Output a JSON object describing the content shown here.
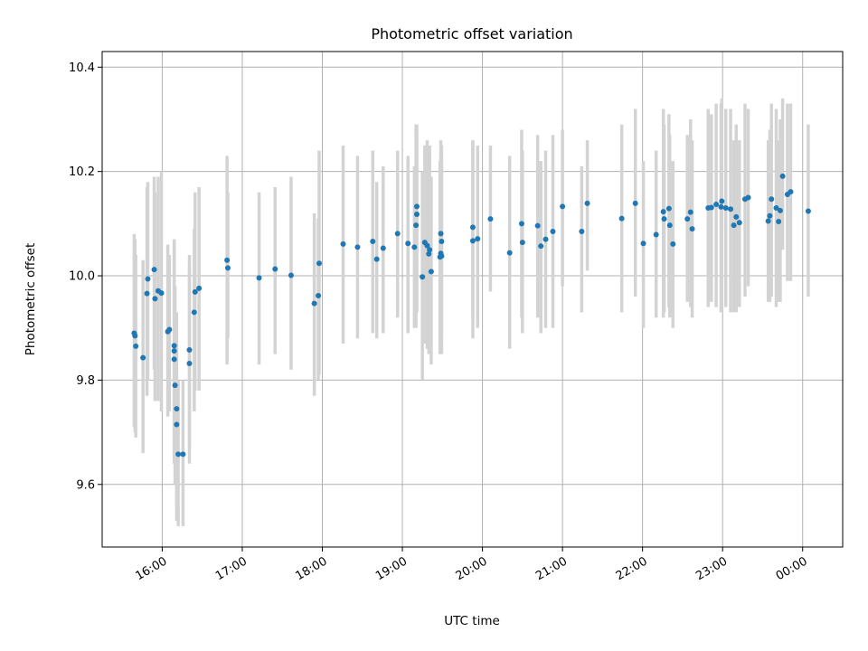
{
  "chart_data": {
    "type": "scatter",
    "title": "Photometric offset variation",
    "xlabel": "UTC time",
    "ylabel": "Photometric offset",
    "x_unit": "hours UTC",
    "xlim": [
      15.25,
      24.5
    ],
    "ylim": [
      9.48,
      10.43
    ],
    "grid": true,
    "colors": {
      "point": "#1f77b4",
      "errorbar": "#d3d3d3",
      "grid": "#b0b0b0"
    },
    "x_ticks": [
      {
        "value": 16,
        "label": "16:00"
      },
      {
        "value": 17,
        "label": "17:00"
      },
      {
        "value": 18,
        "label": "18:00"
      },
      {
        "value": 19,
        "label": "19:00"
      },
      {
        "value": 20,
        "label": "20:00"
      },
      {
        "value": 21,
        "label": "21:00"
      },
      {
        "value": 22,
        "label": "22:00"
      },
      {
        "value": 23,
        "label": "23:00"
      },
      {
        "value": 24,
        "label": "00:00"
      }
    ],
    "y_ticks": [
      {
        "value": 9.6,
        "label": "9.6"
      },
      {
        "value": 9.8,
        "label": "9.8"
      },
      {
        "value": 10.0,
        "label": "10.0"
      },
      {
        "value": 10.2,
        "label": "10.2"
      },
      {
        "value": 10.4,
        "label": "10.4"
      }
    ],
    "points": [
      [
        15.65,
        9.89,
        9.71,
        10.08
      ],
      [
        15.66,
        9.885,
        9.7,
        10.07
      ],
      [
        15.67,
        9.865,
        9.69,
        10.04
      ],
      [
        15.76,
        9.843,
        9.66,
        10.03
      ],
      [
        15.81,
        9.966,
        9.77,
        10.17
      ],
      [
        15.82,
        9.994,
        9.8,
        10.18
      ],
      [
        15.9,
        10.012,
        9.82,
        10.19
      ],
      [
        15.91,
        9.956,
        9.76,
        10.16
      ],
      [
        15.95,
        9.971,
        9.76,
        10.19
      ],
      [
        15.99,
        9.967,
        9.74,
        10.2
      ],
      [
        16.07,
        9.893,
        9.73,
        10.06
      ],
      [
        16.09,
        9.897,
        9.74,
        10.04
      ],
      [
        16.15,
        9.866,
        9.66,
        10.07
      ],
      [
        16.15,
        9.856,
        9.65,
        10.06
      ],
      [
        16.15,
        9.84,
        9.64,
        10.04
      ],
      [
        16.16,
        9.79,
        9.6,
        9.98
      ],
      [
        16.18,
        9.745,
        9.56,
        9.93
      ],
      [
        16.18,
        9.715,
        9.53,
        9.9
      ],
      [
        16.2,
        9.658,
        9.52,
        9.8
      ],
      [
        16.26,
        9.658,
        9.52,
        9.8
      ],
      [
        16.34,
        9.858,
        9.67,
        10.04
      ],
      [
        16.34,
        9.832,
        9.64,
        10.02
      ],
      [
        16.4,
        9.93,
        9.74,
        10.09
      ],
      [
        16.41,
        9.969,
        9.78,
        10.16
      ],
      [
        16.46,
        9.976,
        9.78,
        10.17
      ],
      [
        16.81,
        10.03,
        9.83,
        10.23
      ],
      [
        16.82,
        10.015,
        9.88,
        10.16
      ],
      [
        17.21,
        9.996,
        9.83,
        10.16
      ],
      [
        17.41,
        10.013,
        9.85,
        10.17
      ],
      [
        17.61,
        10.001,
        9.82,
        10.19
      ],
      [
        17.9,
        9.947,
        9.77,
        10.12
      ],
      [
        17.95,
        9.962,
        9.8,
        10.11
      ],
      [
        17.96,
        10.024,
        9.81,
        10.24
      ],
      [
        18.26,
        10.061,
        9.87,
        10.25
      ],
      [
        18.44,
        10.055,
        9.88,
        10.23
      ],
      [
        18.63,
        10.066,
        9.89,
        10.24
      ],
      [
        18.68,
        10.032,
        9.88,
        10.18
      ],
      [
        18.76,
        10.053,
        9.89,
        10.21
      ],
      [
        18.94,
        10.081,
        9.92,
        10.24
      ],
      [
        19.07,
        10.062,
        9.89,
        10.23
      ],
      [
        19.15,
        10.055,
        9.9,
        10.21
      ],
      [
        19.17,
        10.097,
        9.9,
        10.29
      ],
      [
        19.18,
        10.118,
        9.93,
        10.29
      ],
      [
        19.18,
        10.133,
        9.93,
        10.27
      ],
      [
        19.25,
        9.998,
        9.8,
        10.2
      ],
      [
        19.28,
        10.064,
        9.87,
        10.25
      ],
      [
        19.31,
        10.058,
        9.86,
        10.26
      ],
      [
        19.33,
        10.042,
        9.85,
        10.24
      ],
      [
        19.34,
        10.05,
        9.86,
        10.25
      ],
      [
        19.36,
        10.008,
        9.83,
        10.19
      ],
      [
        19.47,
        10.036,
        9.85,
        10.22
      ],
      [
        19.48,
        10.043,
        9.86,
        10.23
      ],
      [
        19.48,
        10.081,
        9.89,
        10.26
      ],
      [
        19.49,
        10.066,
        9.88,
        10.25
      ],
      [
        19.49,
        10.038,
        9.85,
        10.22
      ],
      [
        19.88,
        10.093,
        9.92,
        10.26
      ],
      [
        19.88,
        10.067,
        9.88,
        10.26
      ],
      [
        19.94,
        10.071,
        9.9,
        10.25
      ],
      [
        20.1,
        10.109,
        9.97,
        10.25
      ],
      [
        20.34,
        10.044,
        9.86,
        10.23
      ],
      [
        20.49,
        10.1,
        9.92,
        10.28
      ],
      [
        20.5,
        10.064,
        9.89,
        10.24
      ],
      [
        20.69,
        10.096,
        9.92,
        10.27
      ],
      [
        20.73,
        10.057,
        9.89,
        10.22
      ],
      [
        20.79,
        10.07,
        9.9,
        10.24
      ],
      [
        20.88,
        10.085,
        9.9,
        10.27
      ],
      [
        21.0,
        10.133,
        9.98,
        10.28
      ],
      [
        21.24,
        10.085,
        9.93,
        10.21
      ],
      [
        21.31,
        10.139,
        10.01,
        10.26
      ],
      [
        21.74,
        10.11,
        9.93,
        10.29
      ],
      [
        21.91,
        10.139,
        9.96,
        10.32
      ],
      [
        22.01,
        10.062,
        9.9,
        10.22
      ],
      [
        22.17,
        10.079,
        9.92,
        10.24
      ],
      [
        22.26,
        10.123,
        9.92,
        10.32
      ],
      [
        22.27,
        10.109,
        9.93,
        10.29
      ],
      [
        22.33,
        10.129,
        9.94,
        10.31
      ],
      [
        22.34,
        10.097,
        9.92,
        10.27
      ],
      [
        22.38,
        10.061,
        9.9,
        10.22
      ],
      [
        22.56,
        10.109,
        9.95,
        10.27
      ],
      [
        22.6,
        10.122,
        9.94,
        10.3
      ],
      [
        22.62,
        10.09,
        9.92,
        10.26
      ],
      [
        22.82,
        10.13,
        9.94,
        10.32
      ],
      [
        22.86,
        10.131,
        9.95,
        10.31
      ],
      [
        22.92,
        10.137,
        9.94,
        10.33
      ],
      [
        22.98,
        10.132,
        9.93,
        10.33
      ],
      [
        22.99,
        10.143,
        9.94,
        10.34
      ],
      [
        23.04,
        10.13,
        9.94,
        10.32
      ],
      [
        23.1,
        10.128,
        9.93,
        10.32
      ],
      [
        23.14,
        10.097,
        9.93,
        10.26
      ],
      [
        23.17,
        10.113,
        9.93,
        10.29
      ],
      [
        23.21,
        10.102,
        9.94,
        10.26
      ],
      [
        23.28,
        10.147,
        9.96,
        10.33
      ],
      [
        23.32,
        10.15,
        9.98,
        10.32
      ],
      [
        23.57,
        10.105,
        9.95,
        10.26
      ],
      [
        23.59,
        10.115,
        9.95,
        10.28
      ],
      [
        23.61,
        10.147,
        9.96,
        10.33
      ],
      [
        23.67,
        10.13,
        9.94,
        10.32
      ],
      [
        23.7,
        10.104,
        9.95,
        10.26
      ],
      [
        23.72,
        10.125,
        9.95,
        10.3
      ],
      [
        23.75,
        10.191,
        10.05,
        10.34
      ],
      [
        23.81,
        10.156,
        9.99,
        10.33
      ],
      [
        23.85,
        10.161,
        9.99,
        10.33
      ],
      [
        24.07,
        10.124,
        9.96,
        10.29
      ]
    ]
  }
}
